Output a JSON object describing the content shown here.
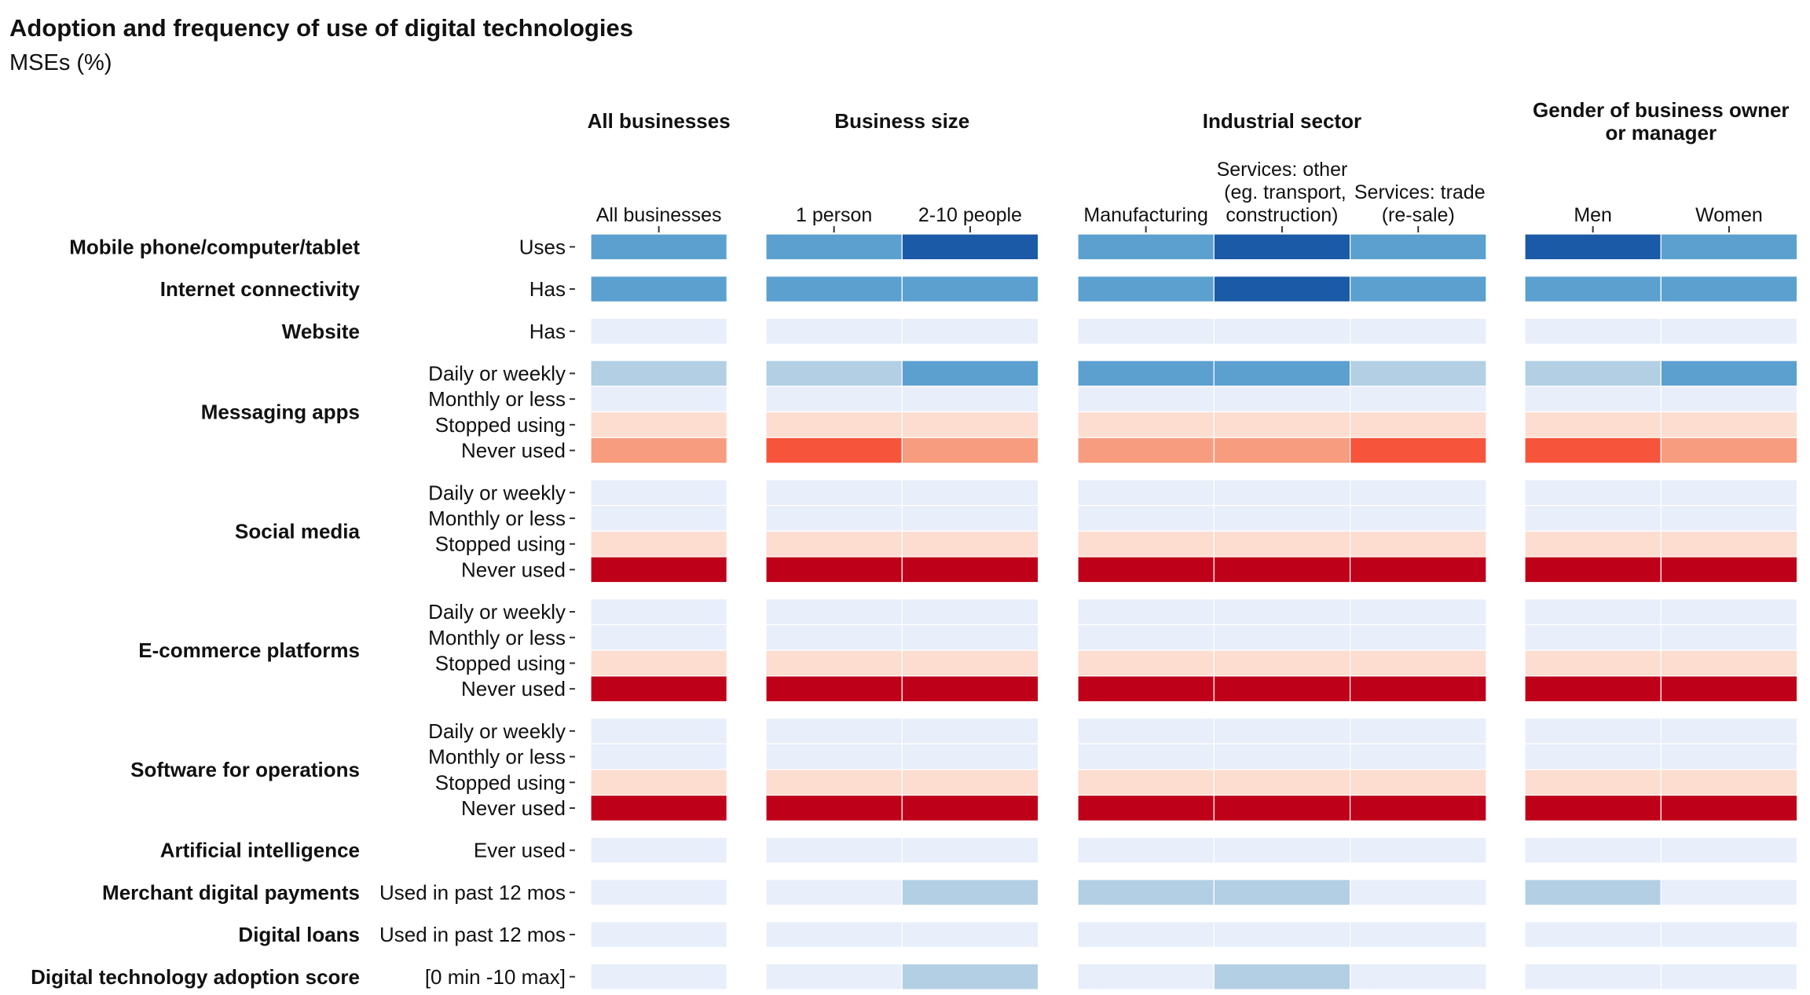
{
  "title": "Adoption and frequency of use of digital technologies",
  "subtitle": "MSEs (%)",
  "palette": {
    "dark_blue": "#1b5aa6",
    "mid_blue": "#5ba0cf",
    "light_blue": "#b2cfe4",
    "pale_blue": "#e8eefa",
    "pale_orange": "#fcddd0",
    "salmon": "#f89c80",
    "red_orange": "#f6553c",
    "dark_red": "#bf0019"
  },
  "chart_data": {
    "type": "heatmap",
    "title": "Adoption and frequency of use of digital technologies",
    "subtitle": "MSEs (%)",
    "column_groups": [
      {
        "name": "All businesses",
        "columns": [
          "All businesses"
        ]
      },
      {
        "name": "Business size",
        "columns": [
          "1 person",
          "2-10 people"
        ]
      },
      {
        "name": "Industrial sector",
        "columns": [
          "Manufacturing",
          "Services: other (eg. transport, construction)",
          "Services: trade (re-sale)"
        ]
      },
      {
        "name": "Gender of business owner or manager",
        "columns": [
          "Men",
          "Women"
        ]
      }
    ],
    "row_groups": [
      {
        "name": "Mobile phone/computer/tablet",
        "rows": [
          {
            "label": "Uses",
            "values": [
              "mid_blue",
              "mid_blue",
              "dark_blue",
              "mid_blue",
              "dark_blue",
              "mid_blue",
              "dark_blue",
              "mid_blue"
            ]
          }
        ]
      },
      {
        "name": "Internet connectivity",
        "rows": [
          {
            "label": "Has",
            "values": [
              "mid_blue",
              "mid_blue",
              "mid_blue",
              "mid_blue",
              "dark_blue",
              "mid_blue",
              "mid_blue",
              "mid_blue"
            ]
          }
        ]
      },
      {
        "name": "Website",
        "rows": [
          {
            "label": "Has",
            "values": [
              "pale_blue",
              "pale_blue",
              "pale_blue",
              "pale_blue",
              "pale_blue",
              "pale_blue",
              "pale_blue",
              "pale_blue"
            ]
          }
        ]
      },
      {
        "name": "Messaging apps",
        "rows": [
          {
            "label": "Daily or weekly",
            "values": [
              "light_blue",
              "light_blue",
              "mid_blue",
              "mid_blue",
              "mid_blue",
              "light_blue",
              "light_blue",
              "mid_blue"
            ]
          },
          {
            "label": "Monthly or less",
            "values": [
              "pale_blue",
              "pale_blue",
              "pale_blue",
              "pale_blue",
              "pale_blue",
              "pale_blue",
              "pale_blue",
              "pale_blue"
            ]
          },
          {
            "label": "Stopped using",
            "values": [
              "pale_orange",
              "pale_orange",
              "pale_orange",
              "pale_orange",
              "pale_orange",
              "pale_orange",
              "pale_orange",
              "pale_orange"
            ]
          },
          {
            "label": "Never used",
            "values": [
              "salmon",
              "red_orange",
              "salmon",
              "salmon",
              "salmon",
              "red_orange",
              "red_orange",
              "salmon"
            ]
          }
        ]
      },
      {
        "name": "Social media",
        "rows": [
          {
            "label": "Daily or weekly",
            "values": [
              "pale_blue",
              "pale_blue",
              "pale_blue",
              "pale_blue",
              "pale_blue",
              "pale_blue",
              "pale_blue",
              "pale_blue"
            ]
          },
          {
            "label": "Monthly or less",
            "values": [
              "pale_blue",
              "pale_blue",
              "pale_blue",
              "pale_blue",
              "pale_blue",
              "pale_blue",
              "pale_blue",
              "pale_blue"
            ]
          },
          {
            "label": "Stopped using",
            "values": [
              "pale_orange",
              "pale_orange",
              "pale_orange",
              "pale_orange",
              "pale_orange",
              "pale_orange",
              "pale_orange",
              "pale_orange"
            ]
          },
          {
            "label": "Never used",
            "values": [
              "dark_red",
              "dark_red",
              "dark_red",
              "dark_red",
              "dark_red",
              "dark_red",
              "dark_red",
              "dark_red"
            ]
          }
        ]
      },
      {
        "name": "E-commerce platforms",
        "rows": [
          {
            "label": "Daily or weekly",
            "values": [
              "pale_blue",
              "pale_blue",
              "pale_blue",
              "pale_blue",
              "pale_blue",
              "pale_blue",
              "pale_blue",
              "pale_blue"
            ]
          },
          {
            "label": "Monthly or less",
            "values": [
              "pale_blue",
              "pale_blue",
              "pale_blue",
              "pale_blue",
              "pale_blue",
              "pale_blue",
              "pale_blue",
              "pale_blue"
            ]
          },
          {
            "label": "Stopped using",
            "values": [
              "pale_orange",
              "pale_orange",
              "pale_orange",
              "pale_orange",
              "pale_orange",
              "pale_orange",
              "pale_orange",
              "pale_orange"
            ]
          },
          {
            "label": "Never used",
            "values": [
              "dark_red",
              "dark_red",
              "dark_red",
              "dark_red",
              "dark_red",
              "dark_red",
              "dark_red",
              "dark_red"
            ]
          }
        ]
      },
      {
        "name": "Software for operations",
        "rows": [
          {
            "label": "Daily or weekly",
            "values": [
              "pale_blue",
              "pale_blue",
              "pale_blue",
              "pale_blue",
              "pale_blue",
              "pale_blue",
              "pale_blue",
              "pale_blue"
            ]
          },
          {
            "label": "Monthly or less",
            "values": [
              "pale_blue",
              "pale_blue",
              "pale_blue",
              "pale_blue",
              "pale_blue",
              "pale_blue",
              "pale_blue",
              "pale_blue"
            ]
          },
          {
            "label": "Stopped using",
            "values": [
              "pale_orange",
              "pale_orange",
              "pale_orange",
              "pale_orange",
              "pale_orange",
              "pale_orange",
              "pale_orange",
              "pale_orange"
            ]
          },
          {
            "label": "Never used",
            "values": [
              "dark_red",
              "dark_red",
              "dark_red",
              "dark_red",
              "dark_red",
              "dark_red",
              "dark_red",
              "dark_red"
            ]
          }
        ]
      },
      {
        "name": "Artificial intelligence",
        "rows": [
          {
            "label": "Ever used",
            "values": [
              "pale_blue",
              "pale_blue",
              "pale_blue",
              "pale_blue",
              "pale_blue",
              "pale_blue",
              "pale_blue",
              "pale_blue"
            ]
          }
        ]
      },
      {
        "name": "Merchant digital payments",
        "rows": [
          {
            "label": "Used in past 12 mos",
            "values": [
              "pale_blue",
              "pale_blue",
              "light_blue",
              "light_blue",
              "light_blue",
              "pale_blue",
              "light_blue",
              "pale_blue"
            ]
          }
        ]
      },
      {
        "name": "Digital loans",
        "rows": [
          {
            "label": "Used in past 12 mos",
            "values": [
              "pale_blue",
              "pale_blue",
              "pale_blue",
              "pale_blue",
              "pale_blue",
              "pale_blue",
              "pale_blue",
              "pale_blue"
            ]
          }
        ]
      },
      {
        "name": "Digital technology adoption score",
        "rows": [
          {
            "label": "[0 min -10 max]",
            "values": [
              "pale_blue",
              "pale_blue",
              "light_blue",
              "pale_blue",
              "light_blue",
              "pale_blue",
              "pale_blue",
              "pale_blue"
            ]
          }
        ]
      }
    ],
    "grid": false,
    "legend": "none"
  }
}
